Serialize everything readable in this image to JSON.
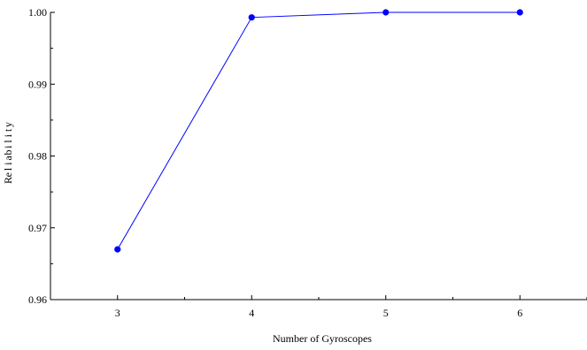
{
  "chart_data": {
    "type": "line",
    "xlabel": "Number of Gyroscopes",
    "ylabel": "Reliability",
    "categories": [
      3,
      4,
      5,
      6
    ],
    "series": [
      {
        "values": [
          0.967,
          0.9993,
          1.0,
          1.0
        ],
        "color": "#0000ff"
      }
    ],
    "xlim": [
      2.5,
      6.5
    ],
    "ylim": [
      0.96,
      1.0
    ],
    "xticks": [
      "3",
      "4",
      "5",
      "6"
    ],
    "yticks": [
      "0.96",
      "0.97",
      "0.98",
      "0.99",
      "1.00"
    ],
    "grid": false,
    "legend": "none"
  }
}
